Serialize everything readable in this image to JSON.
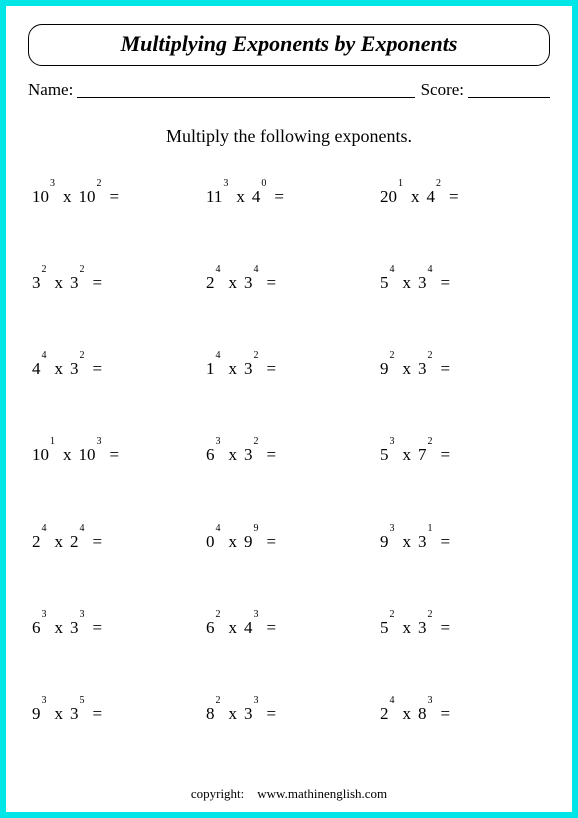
{
  "title": "Multiplying Exponents by Exponents",
  "name_label": "Name:",
  "score_label": "Score:",
  "instructions": "Multiply the following exponents.",
  "copyright_label": "copyright:",
  "copyright_site": "www.mathinenglish.com",
  "colors": {
    "page_bg": "#ffffff",
    "outer_bg": "#00e5e5",
    "text": "#000000"
  },
  "typography": {
    "title_fontsize": 22,
    "body_fontsize": 17,
    "instruction_fontsize": 18,
    "exponent_fontsize": 10,
    "copyright_fontsize": 13,
    "font_family": "Times New Roman"
  },
  "layout": {
    "rows": 7,
    "cols": 3
  },
  "problems": [
    {
      "b1": "10",
      "e1": "3",
      "b2": "10",
      "e2": "2"
    },
    {
      "b1": "11",
      "e1": "3",
      "b2": "4",
      "e2": "0"
    },
    {
      "b1": "20",
      "e1": "1",
      "b2": "4",
      "e2": "2"
    },
    {
      "b1": "3",
      "e1": "2",
      "b2": "3",
      "e2": "2"
    },
    {
      "b1": "2",
      "e1": "4",
      "b2": "3",
      "e2": "4"
    },
    {
      "b1": "5",
      "e1": "4",
      "b2": "3",
      "e2": "4"
    },
    {
      "b1": "4",
      "e1": "4",
      "b2": "3",
      "e2": "2"
    },
    {
      "b1": "1",
      "e1": "4",
      "b2": "3",
      "e2": "2"
    },
    {
      "b1": "9",
      "e1": "2",
      "b2": "3",
      "e2": "2"
    },
    {
      "b1": "10",
      "e1": "1",
      "b2": "10",
      "e2": "3"
    },
    {
      "b1": "6",
      "e1": "3",
      "b2": "3",
      "e2": "2"
    },
    {
      "b1": "5",
      "e1": "3",
      "b2": "7",
      "e2": "2"
    },
    {
      "b1": "2",
      "e1": "4",
      "b2": "2",
      "e2": "4"
    },
    {
      "b1": "0",
      "e1": "4",
      "b2": "9",
      "e2": "9"
    },
    {
      "b1": "9",
      "e1": "3",
      "b2": "3",
      "e2": "1"
    },
    {
      "b1": "6",
      "e1": "3",
      "b2": "3",
      "e2": "3"
    },
    {
      "b1": "6",
      "e1": "2",
      "b2": "4",
      "e2": "3"
    },
    {
      "b1": "5",
      "e1": "2",
      "b2": "3",
      "e2": "2"
    },
    {
      "b1": "9",
      "e1": "3",
      "b2": "3",
      "e2": "5"
    },
    {
      "b1": "8",
      "e1": "2",
      "b2": "3",
      "e2": "3"
    },
    {
      "b1": "2",
      "e1": "4",
      "b2": "8",
      "e2": "3"
    }
  ]
}
